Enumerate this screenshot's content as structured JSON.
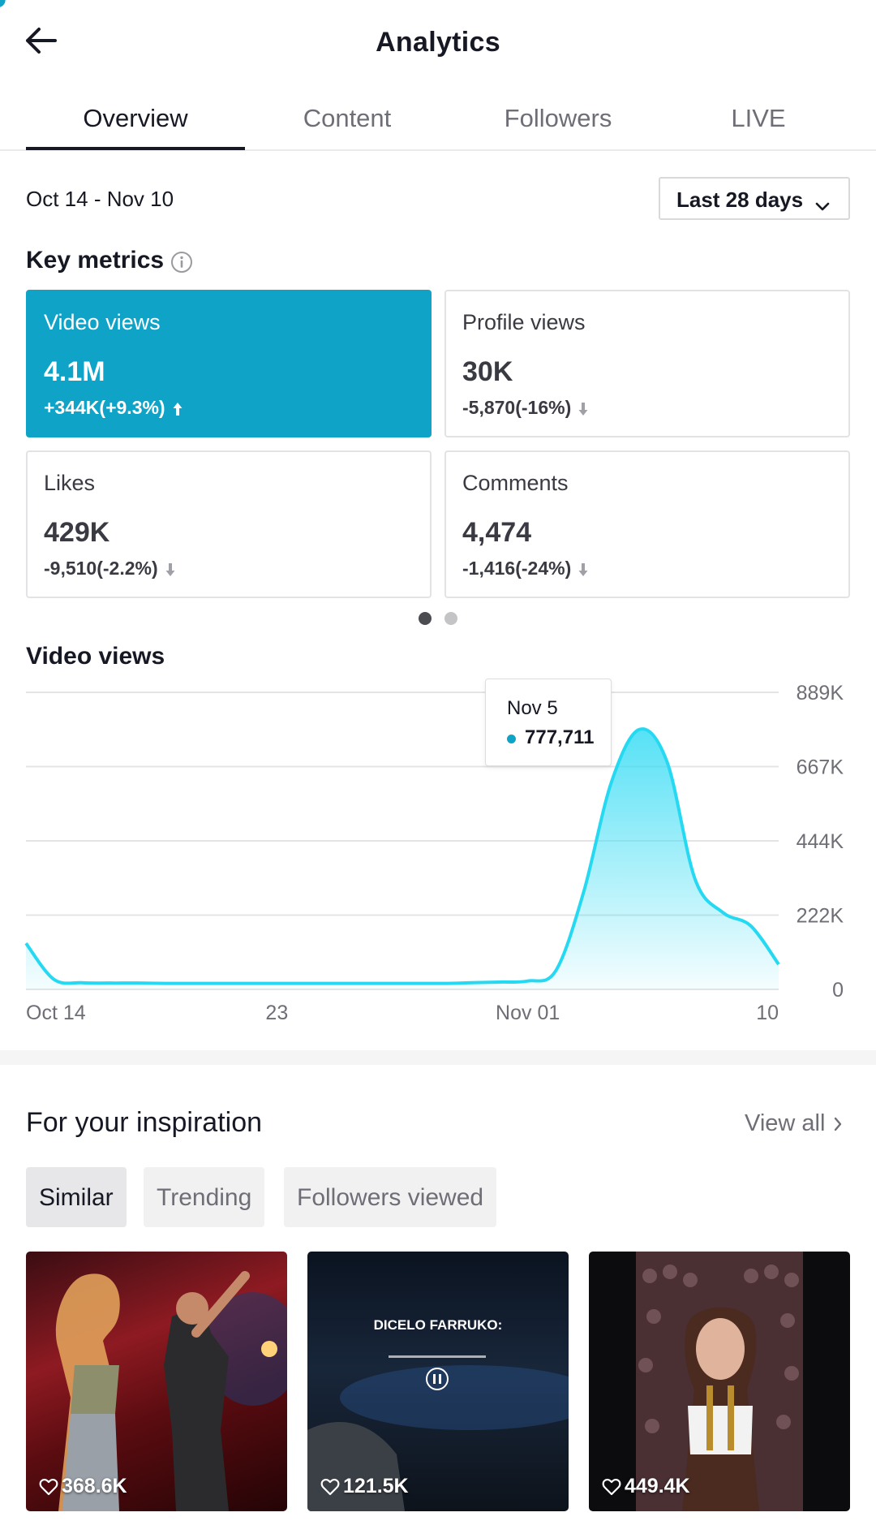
{
  "header": {
    "title": "Analytics"
  },
  "tabs": [
    {
      "label": "Overview",
      "active": true
    },
    {
      "label": "Content",
      "active": false
    },
    {
      "label": "Followers",
      "active": false
    },
    {
      "label": "LIVE",
      "active": false
    }
  ],
  "date_range": "Oct 14 - Nov 10",
  "period_select": {
    "value": "Last 28 days"
  },
  "key_metrics": {
    "title": "Key metrics",
    "cards": [
      {
        "label": "Video views",
        "value": "4.1M",
        "delta": "+344K(+9.3%)",
        "trend": "up",
        "active": true
      },
      {
        "label": "Profile views",
        "value": "30K",
        "delta": "-5,870(-16%)",
        "trend": "down",
        "active": false
      },
      {
        "label": "Likes",
        "value": "429K",
        "delta": "-9,510(-2.2%)",
        "trend": "down",
        "active": false
      },
      {
        "label": "Comments",
        "value": "4,474",
        "delta": "-1,416(-24%)",
        "trend": "down",
        "active": false
      }
    ],
    "page_indicator": {
      "pages": 2,
      "current": 1
    }
  },
  "chart_data": {
    "type": "area",
    "title": "Video views",
    "xlabel": "",
    "ylabel": "",
    "x_tick_labels": [
      "Oct 14",
      "23",
      "Nov 01",
      "10"
    ],
    "y_tick_labels": [
      "889K",
      "667K",
      "444K",
      "222K",
      "0"
    ],
    "ylim": [
      0,
      889000
    ],
    "x": [
      "Oct 14",
      "Oct 15",
      "Oct 16",
      "Oct 17",
      "Oct 18",
      "Oct 19",
      "Oct 20",
      "Oct 21",
      "Oct 22",
      "Oct 23",
      "Oct 24",
      "Oct 25",
      "Oct 26",
      "Oct 27",
      "Oct 28",
      "Oct 29",
      "Oct 30",
      "Oct 31",
      "Nov 01",
      "Nov 02",
      "Nov 03",
      "Nov 04",
      "Nov 05",
      "Nov 06",
      "Nov 07",
      "Nov 08",
      "Nov 09",
      "Nov 10"
    ],
    "series": [
      {
        "values": [
          138000,
          30000,
          20000,
          19000,
          19000,
          18000,
          18000,
          18000,
          18000,
          18000,
          18000,
          18000,
          18000,
          18000,
          18000,
          18000,
          20000,
          22000,
          25000,
          55000,
          290000,
          620000,
          777711,
          680000,
          330000,
          230000,
          190000,
          75000
        ]
      }
    ],
    "grid": true,
    "color": "#25d9f2",
    "highlight": {
      "x": "Nov 5",
      "label": "Nov 5",
      "value_text": "777,711"
    }
  },
  "inspiration": {
    "title": "For your inspiration",
    "view_all": "View all",
    "chips": [
      {
        "label": "Similar",
        "active": true
      },
      {
        "label": "Trending",
        "active": false
      },
      {
        "label": "Followers viewed",
        "active": false
      }
    ],
    "videos": [
      {
        "likes": "368.6K",
        "overlay_text": ""
      },
      {
        "likes": "121.5K",
        "overlay_text": "DICELO FARRUKO:"
      },
      {
        "likes": "449.4K",
        "overlay_text": ""
      }
    ]
  },
  "colors": {
    "accent": "#10a3c8",
    "line": "#25d9f2",
    "text": "#161823",
    "muted": "#6e6f76"
  }
}
